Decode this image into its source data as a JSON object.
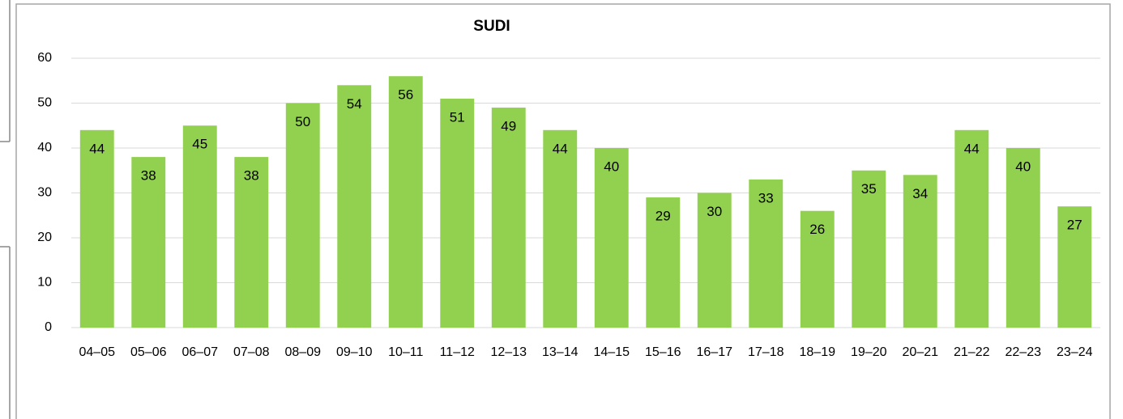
{
  "chart_data": {
    "type": "bar",
    "title": "SUDI",
    "categories": [
      "04–05",
      "05–06",
      "06–07",
      "07–08",
      "08–09",
      "09–10",
      "10–11",
      "11–12",
      "12–13",
      "13–14",
      "14–15",
      "15–16",
      "16–17",
      "17–18",
      "18–19",
      "19–20",
      "20–21",
      "21–22",
      "22–23",
      "23–24"
    ],
    "values": [
      44,
      38,
      45,
      38,
      50,
      54,
      56,
      51,
      49,
      44,
      40,
      29,
      30,
      33,
      26,
      35,
      34,
      44,
      40,
      27
    ],
    "color": "#92d050",
    "ylim": [
      0,
      60
    ],
    "yticks": [
      0,
      10,
      20,
      30,
      40,
      50,
      60
    ],
    "grid": true
  }
}
